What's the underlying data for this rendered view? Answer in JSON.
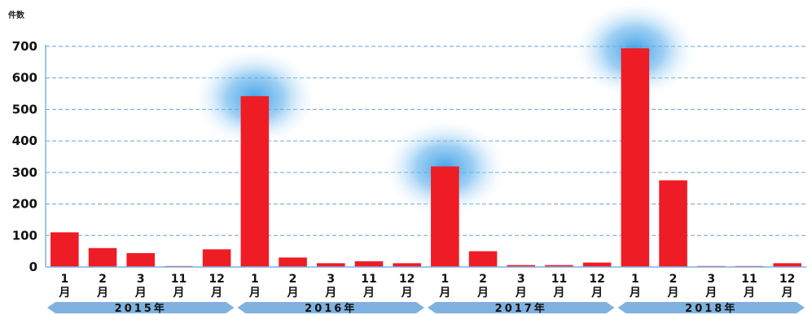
{
  "chart_data": {
    "type": "bar",
    "ylabel": "件数",
    "ylim": [
      0,
      700
    ],
    "yticks": [
      0,
      100,
      200,
      300,
      400,
      500,
      600,
      700
    ],
    "grid": true,
    "bar_color": "#ee1c25",
    "highlight_color": "#3a9ee6",
    "band_color": "#7fb2de",
    "month_suffix": "月",
    "groups": [
      {
        "year_label": "2015年",
        "months": [
          "1",
          "2",
          "3",
          "11",
          "12"
        ],
        "values": [
          110,
          60,
          44,
          3,
          56
        ]
      },
      {
        "year_label": "2016年",
        "months": [
          "1",
          "2",
          "3",
          "11",
          "12"
        ],
        "values": [
          542,
          30,
          12,
          18,
          12
        ]
      },
      {
        "year_label": "2017年",
        "months": [
          "1",
          "2",
          "3",
          "11",
          "12"
        ],
        "values": [
          319,
          50,
          6,
          6,
          14
        ]
      },
      {
        "year_label": "2018年",
        "months": [
          "1",
          "2",
          "3",
          "11",
          "12"
        ],
        "values": [
          694,
          275,
          3,
          3,
          12
        ]
      }
    ],
    "highlighted": [
      {
        "group": 1,
        "month": 0
      },
      {
        "group": 2,
        "month": 0
      },
      {
        "group": 3,
        "month": 0
      }
    ]
  }
}
